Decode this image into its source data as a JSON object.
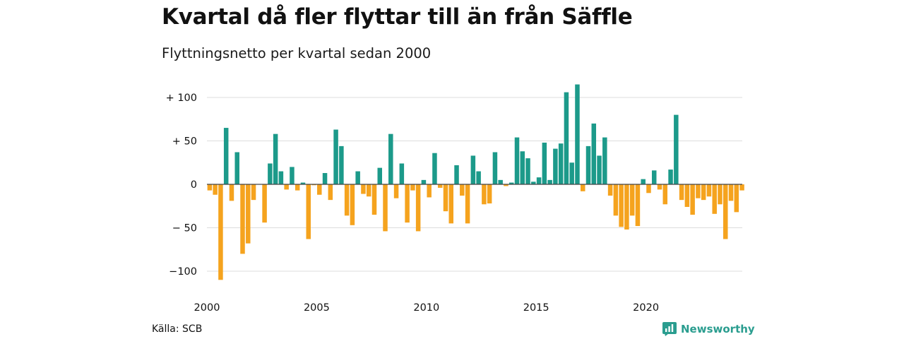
{
  "header": {
    "title": "Kvartal då fler flyttar till än från Säffle",
    "subtitle": "Flyttningsnetto per kvartal sedan 2000"
  },
  "footer": {
    "source": "Källa: SCB",
    "brand": "Newsworthy",
    "brand_color": "#2a9d8f"
  },
  "colors": {
    "positive": "#1c9a8a",
    "negative": "#f5a31e",
    "grid": "#dddddd",
    "zero_line": "#444444"
  },
  "chart_data": {
    "type": "bar",
    "title": "Kvartal då fler flyttar till än från Säffle",
    "subtitle": "Flyttningsnetto per kvartal sedan 2000",
    "xlabel": "",
    "ylabel": "",
    "ylim": [
      -110,
      115
    ],
    "yticks": [
      100,
      50,
      0,
      -50,
      -100
    ],
    "ytick_labels": [
      "+ 100",
      "+  50",
      "0",
      "− 50",
      "−100"
    ],
    "xticks": [
      {
        "year": 2000,
        "label": "2000"
      },
      {
        "year": 2005,
        "label": "2005"
      },
      {
        "year": 2010,
        "label": "2010"
      },
      {
        "year": 2015,
        "label": "2015"
      },
      {
        "year": 2020,
        "label": "2020"
      }
    ],
    "grid": true,
    "legend": "none",
    "start_quarter": "2000 Q1",
    "series": [
      {
        "values": [
          -7,
          -12,
          -110,
          65,
          -19,
          37,
          -80,
          -68,
          -18,
          0,
          -44,
          24,
          58,
          15,
          -6,
          20,
          -7,
          2,
          -63,
          -1,
          -12,
          13,
          -18,
          63,
          44,
          -36,
          -47,
          15,
          -11,
          -14,
          -35,
          19,
          -54,
          58,
          -16,
          24,
          -44,
          -7,
          -54,
          5,
          -15,
          36,
          -4,
          -31,
          -45,
          22,
          -13,
          -45,
          33,
          15,
          -23,
          -22,
          37,
          5,
          -2,
          2,
          54,
          38,
          30,
          3,
          8,
          48,
          5,
          41,
          47,
          106,
          25,
          115,
          -8,
          44,
          70,
          33,
          54,
          -13,
          -36,
          -49,
          -52,
          -36,
          -48,
          6,
          -10,
          16,
          -6,
          -23,
          17,
          80,
          -18,
          -26,
          -35,
          -16,
          -18,
          -14,
          -34,
          -23,
          -63,
          -19,
          -32,
          -7
        ]
      }
    ]
  }
}
